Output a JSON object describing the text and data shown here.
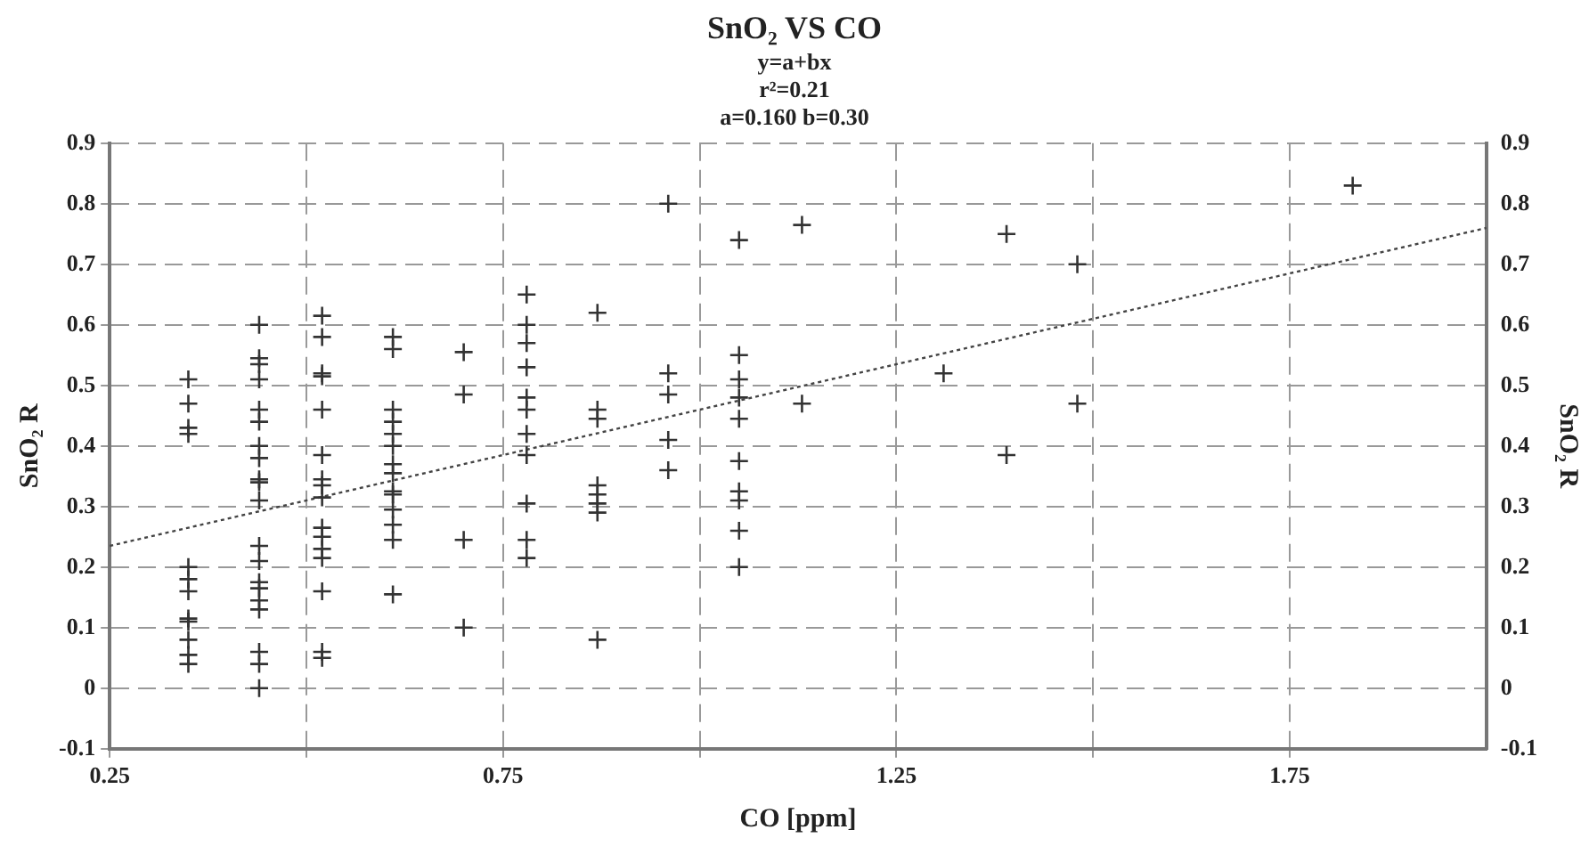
{
  "chart_data": {
    "type": "scatter",
    "title": "SnO₂ VS CO",
    "subtitle": "y=a+bx",
    "annotations": [
      "r²=0.21",
      "a=0.160 b=0.30"
    ],
    "xlabel": "CO [ppm]",
    "ylabel": "SnO₂ R",
    "y2label": "SnO₂ R",
    "xlim": [
      0.25,
      2.0
    ],
    "xticks": [
      0.25,
      {
        "value": 0.5,
        "label": null
      },
      0.75,
      {
        "value": 1.0,
        "label": null
      },
      1.25,
      {
        "value": 1.5,
        "label": null
      },
      1.75
    ],
    "ylim": [
      -0.1,
      0.9
    ],
    "yticks": [
      -0.1,
      0,
      0.1,
      0.2,
      0.3,
      0.4,
      0.5,
      0.6,
      0.7,
      0.8,
      0.9
    ],
    "y2lim": [
      -0.1,
      0.9
    ],
    "y2ticks": [
      -0.1,
      0,
      0.1,
      0.2,
      0.3,
      0.4,
      0.5,
      0.6,
      0.7,
      0.8,
      0.9
    ],
    "grid": true,
    "legend": false,
    "series": [
      {
        "color": "#333333",
        "marker": "cross",
        "x": [
          0.35,
          0.35,
          0.35,
          0.35,
          0.35,
          0.35,
          0.35,
          0.35,
          0.35,
          0.35,
          0.35,
          0.35,
          0.44,
          0.44,
          0.44,
          0.44,
          0.44,
          0.44,
          0.44,
          0.44,
          0.44,
          0.44,
          0.44,
          0.44,
          0.44,
          0.44,
          0.44,
          0.44,
          0.44,
          0.44,
          0.44,
          0.44,
          0.52,
          0.52,
          0.52,
          0.52,
          0.52,
          0.52,
          0.52,
          0.52,
          0.52,
          0.52,
          0.52,
          0.52,
          0.52,
          0.52,
          0.52,
          0.52,
          0.61,
          0.61,
          0.61,
          0.61,
          0.61,
          0.61,
          0.61,
          0.61,
          0.61,
          0.61,
          0.61,
          0.61,
          0.61,
          0.61,
          0.7,
          0.7,
          0.7,
          0.7,
          0.78,
          0.78,
          0.78,
          0.78,
          0.78,
          0.78,
          0.78,
          0.78,
          0.78,
          0.78,
          0.78,
          0.87,
          0.87,
          0.87,
          0.87,
          0.87,
          0.87,
          0.87,
          0.87,
          0.96,
          0.96,
          0.96,
          0.96,
          0.96,
          1.05,
          1.05,
          1.05,
          1.05,
          1.05,
          1.05,
          1.05,
          1.05,
          1.05,
          1.05,
          1.13,
          1.13,
          1.31,
          1.39,
          1.39,
          1.48,
          1.48,
          1.83
        ],
        "values": [
          0.51,
          0.47,
          0.43,
          0.42,
          0.2,
          0.18,
          0.16,
          0.115,
          0.11,
          0.08,
          0.055,
          0.04,
          0.6,
          0.545,
          0.535,
          0.51,
          0.46,
          0.44,
          0.4,
          0.38,
          0.345,
          0.34,
          0.31,
          0.235,
          0.21,
          0.175,
          0.165,
          0.145,
          0.13,
          0.06,
          0.04,
          0.0,
          0.615,
          0.58,
          0.52,
          0.515,
          0.46,
          0.385,
          0.345,
          0.335,
          0.315,
          0.265,
          0.25,
          0.23,
          0.215,
          0.16,
          0.06,
          0.05,
          0.58,
          0.56,
          0.46,
          0.44,
          0.42,
          0.4,
          0.37,
          0.355,
          0.325,
          0.32,
          0.295,
          0.27,
          0.245,
          0.155,
          0.555,
          0.485,
          0.245,
          0.1,
          0.65,
          0.6,
          0.57,
          0.53,
          0.48,
          0.46,
          0.42,
          0.385,
          0.305,
          0.245,
          0.215,
          0.62,
          0.46,
          0.445,
          0.335,
          0.32,
          0.305,
          0.29,
          0.08,
          0.8,
          0.52,
          0.485,
          0.41,
          0.36,
          0.74,
          0.55,
          0.51,
          0.48,
          0.445,
          0.375,
          0.325,
          0.31,
          0.26,
          0.2,
          0.765,
          0.47,
          0.52,
          0.75,
          0.385,
          0.7,
          0.47,
          0.83
        ]
      },
      {
        "type": "line",
        "color": "#444444",
        "marker": "none",
        "line_style": "dotted",
        "x": [
          0.25,
          2.0
        ],
        "values": [
          0.235,
          0.76
        ]
      }
    ]
  }
}
